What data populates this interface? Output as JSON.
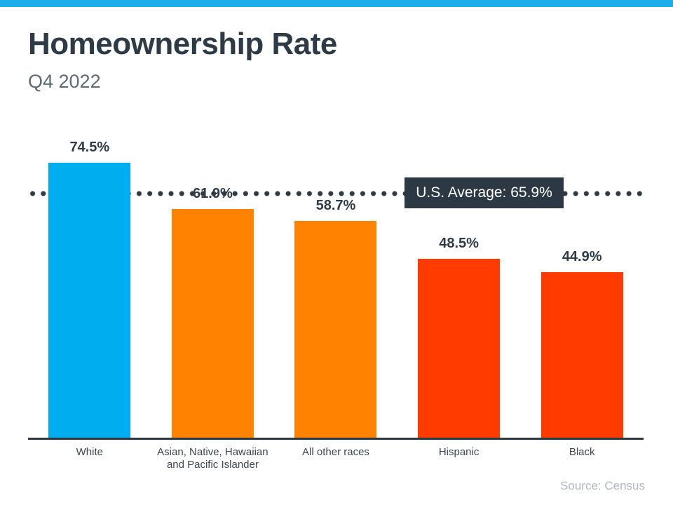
{
  "meta": {
    "title": "Homeownership Rate",
    "subtitle": "Q4 2022",
    "source": "Source: Census"
  },
  "colors": {
    "top_accent": "#1aade9",
    "ink": "#2d3b46",
    "subtitle_gray": "#5b6b74",
    "axis": "#2b3842",
    "reference_box_bg": "#2c3843",
    "reference_text": "#ffffff",
    "source_gray": "#aeb9c0"
  },
  "chart_data": {
    "type": "bar",
    "title": "Homeownership Rate",
    "subtitle": "Q4 2022",
    "categories": [
      "White",
      "Asian, Native, Hawaiian\nand Pacific Islander",
      "All other races",
      "Hispanic",
      "Black"
    ],
    "values": [
      74.5,
      61.9,
      58.7,
      48.5,
      44.9
    ],
    "value_labels": [
      "74.5%",
      "61.9%",
      "58.7%",
      "48.5%",
      "44.9%"
    ],
    "bar_colors": [
      "#00aeef",
      "#ff8300",
      "#ff8300",
      "#ff3b00",
      "#ff3b00"
    ],
    "reference_line": {
      "label": "U.S. Average: 65.9%",
      "value": 65.9,
      "style": "dotted"
    },
    "xlabel": "",
    "ylabel": "",
    "ylim": [
      0,
      84.4
    ],
    "grid": false,
    "legend": false,
    "source": "Source: Census"
  }
}
